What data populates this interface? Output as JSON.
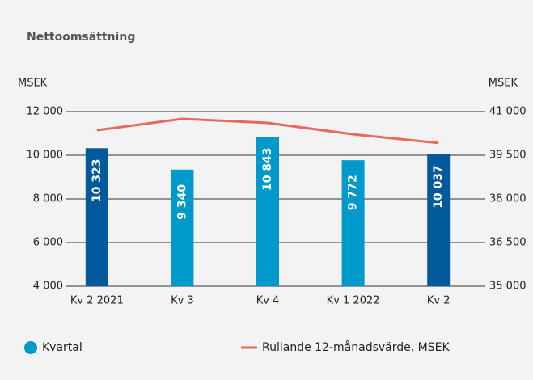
{
  "chart_data": {
    "type": "combo",
    "title": "Nettoomsättning",
    "y_label": "MSEK",
    "y2_label": "MSEK",
    "categories": [
      "Kv 2 2021",
      "Kv 3",
      "Kv 4",
      "Kv 1 2022",
      "Kv 2"
    ],
    "series": [
      {
        "name": "Kvartal",
        "type": "bar",
        "color": "#0099cc",
        "colors": [
          "#005a9c",
          "#0099cc",
          "#0099cc",
          "#0099cc",
          "#005a9c"
        ],
        "values": [
          10323,
          9340,
          10843,
          9772,
          10037
        ],
        "value_labels": [
          "10 323",
          "9 340",
          "10 843",
          "9 772",
          "10 037"
        ]
      },
      {
        "name": "Rullande 12-månadsvärde, MSEK",
        "type": "line",
        "axis": "y2",
        "color": "#e8685a",
        "values": [
          40360,
          40750,
          40610,
          40220,
          39920
        ]
      }
    ],
    "ylim": [
      4000,
      12000
    ],
    "yticks": [
      {
        "value": 4000,
        "label": "4 000"
      },
      {
        "value": 6000,
        "label": "6 000"
      },
      {
        "value": 8000,
        "label": "8 000"
      },
      {
        "value": 10000,
        "label": "10 000"
      },
      {
        "value": 12000,
        "label": "12 000"
      }
    ],
    "y2lim": [
      35000,
      41000
    ],
    "y2ticks": [
      {
        "value": 35000,
        "label": "35 000"
      },
      {
        "value": 36500,
        "label": "36 500"
      },
      {
        "value": 38000,
        "label": "38 000"
      },
      {
        "value": 39500,
        "label": "39 500"
      },
      {
        "value": 41000,
        "label": "41 000"
      }
    ],
    "grid": true
  }
}
